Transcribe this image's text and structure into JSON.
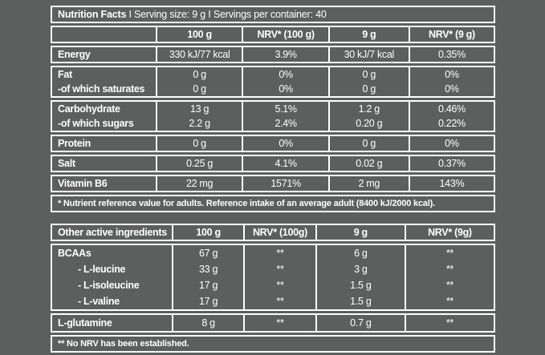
{
  "colors": {
    "background": "#5b5f5d",
    "border": "#ffffff",
    "text": "#ffffff"
  },
  "table1": {
    "title_bold": "Nutrition Facts",
    "title_rest": "I Serving size: 9 g I Servings per container: 40",
    "columns": [
      "",
      "100 g",
      "NRV* (100 g)",
      "9 g",
      "NRV* (9 g)"
    ],
    "groups": [
      [
        {
          "label": "Energy",
          "values": [
            "330 kJ/77 kcal",
            "3.9%",
            "30 kJ/7 kcal",
            "0.35%"
          ]
        }
      ],
      [
        {
          "label": "Fat",
          "values": [
            "0 g",
            "0%",
            "0 g",
            "0%"
          ]
        },
        {
          "label": "-of which saturates",
          "values": [
            "0 g",
            "0%",
            "0 g",
            "0%"
          ]
        }
      ],
      [
        {
          "label": "Carbohydrate",
          "values": [
            "13 g",
            "5.1%",
            "1.2 g",
            "0.46%"
          ]
        },
        {
          "label": "-of which sugars",
          "values": [
            "2.2 g",
            "2.4%",
            "0.20 g",
            "0.22%"
          ]
        }
      ],
      [
        {
          "label": "Protein",
          "values": [
            "0 g",
            "0%",
            "0 g",
            "0%"
          ]
        }
      ],
      [
        {
          "label": "Salt",
          "values": [
            "0.25 g",
            "4.1%",
            "0.02 g",
            "0.37%"
          ]
        }
      ],
      [
        {
          "label": "Vitamin B6",
          "values": [
            "22 mg",
            "1571%",
            "2 mg",
            "143%"
          ]
        }
      ]
    ],
    "footnote": "* Nutrient reference value for adults. Reference intake of an average adult (8400 kJ/2000 kcal)."
  },
  "table2": {
    "columns": [
      "Other active ingredients",
      "100 g",
      "NRV* (100g)",
      "9 g",
      "NRV* (9g)"
    ],
    "groups": [
      [
        {
          "label": "BCAAs",
          "values": [
            "67 g",
            "**",
            "6 g",
            "**"
          ]
        },
        {
          "label": "- L-leucine",
          "indent": true,
          "values": [
            "33 g",
            "**",
            "3 g",
            "**"
          ]
        },
        {
          "label": "- L-isoleucine",
          "indent": true,
          "values": [
            "17 g",
            "**",
            "1.5 g",
            "**"
          ]
        },
        {
          "label": "- L-valine",
          "indent": true,
          "values": [
            "17 g",
            "**",
            "1.5 g",
            "**"
          ]
        }
      ],
      [
        {
          "label": "L-glutamine",
          "values": [
            "8 g",
            "**",
            "0.7 g",
            "**"
          ]
        }
      ]
    ],
    "footnote": "** No NRV has been established."
  }
}
